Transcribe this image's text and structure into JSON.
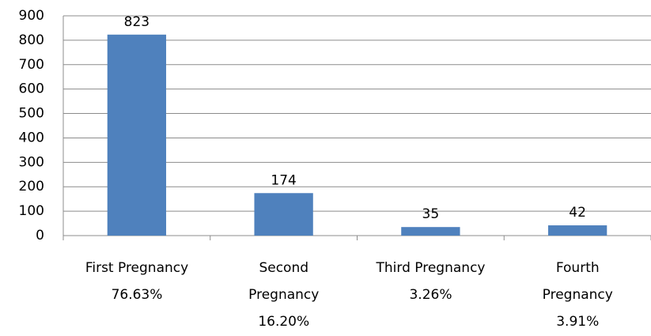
{
  "chart_data": {
    "type": "bar",
    "categories": [
      "First Pregnancy\n76.63%",
      "Second\nPregnancy\n16.20%",
      "Third Pregnancy\n3.26%",
      "Fourth\nPregnancy\n3.91%"
    ],
    "values": [
      823,
      174,
      35,
      42
    ],
    "color": "#4f81bd",
    "ylim": [
      0,
      900
    ],
    "yticks": [
      0,
      100,
      200,
      300,
      400,
      500,
      600,
      700,
      800,
      900
    ],
    "grid": true
  }
}
